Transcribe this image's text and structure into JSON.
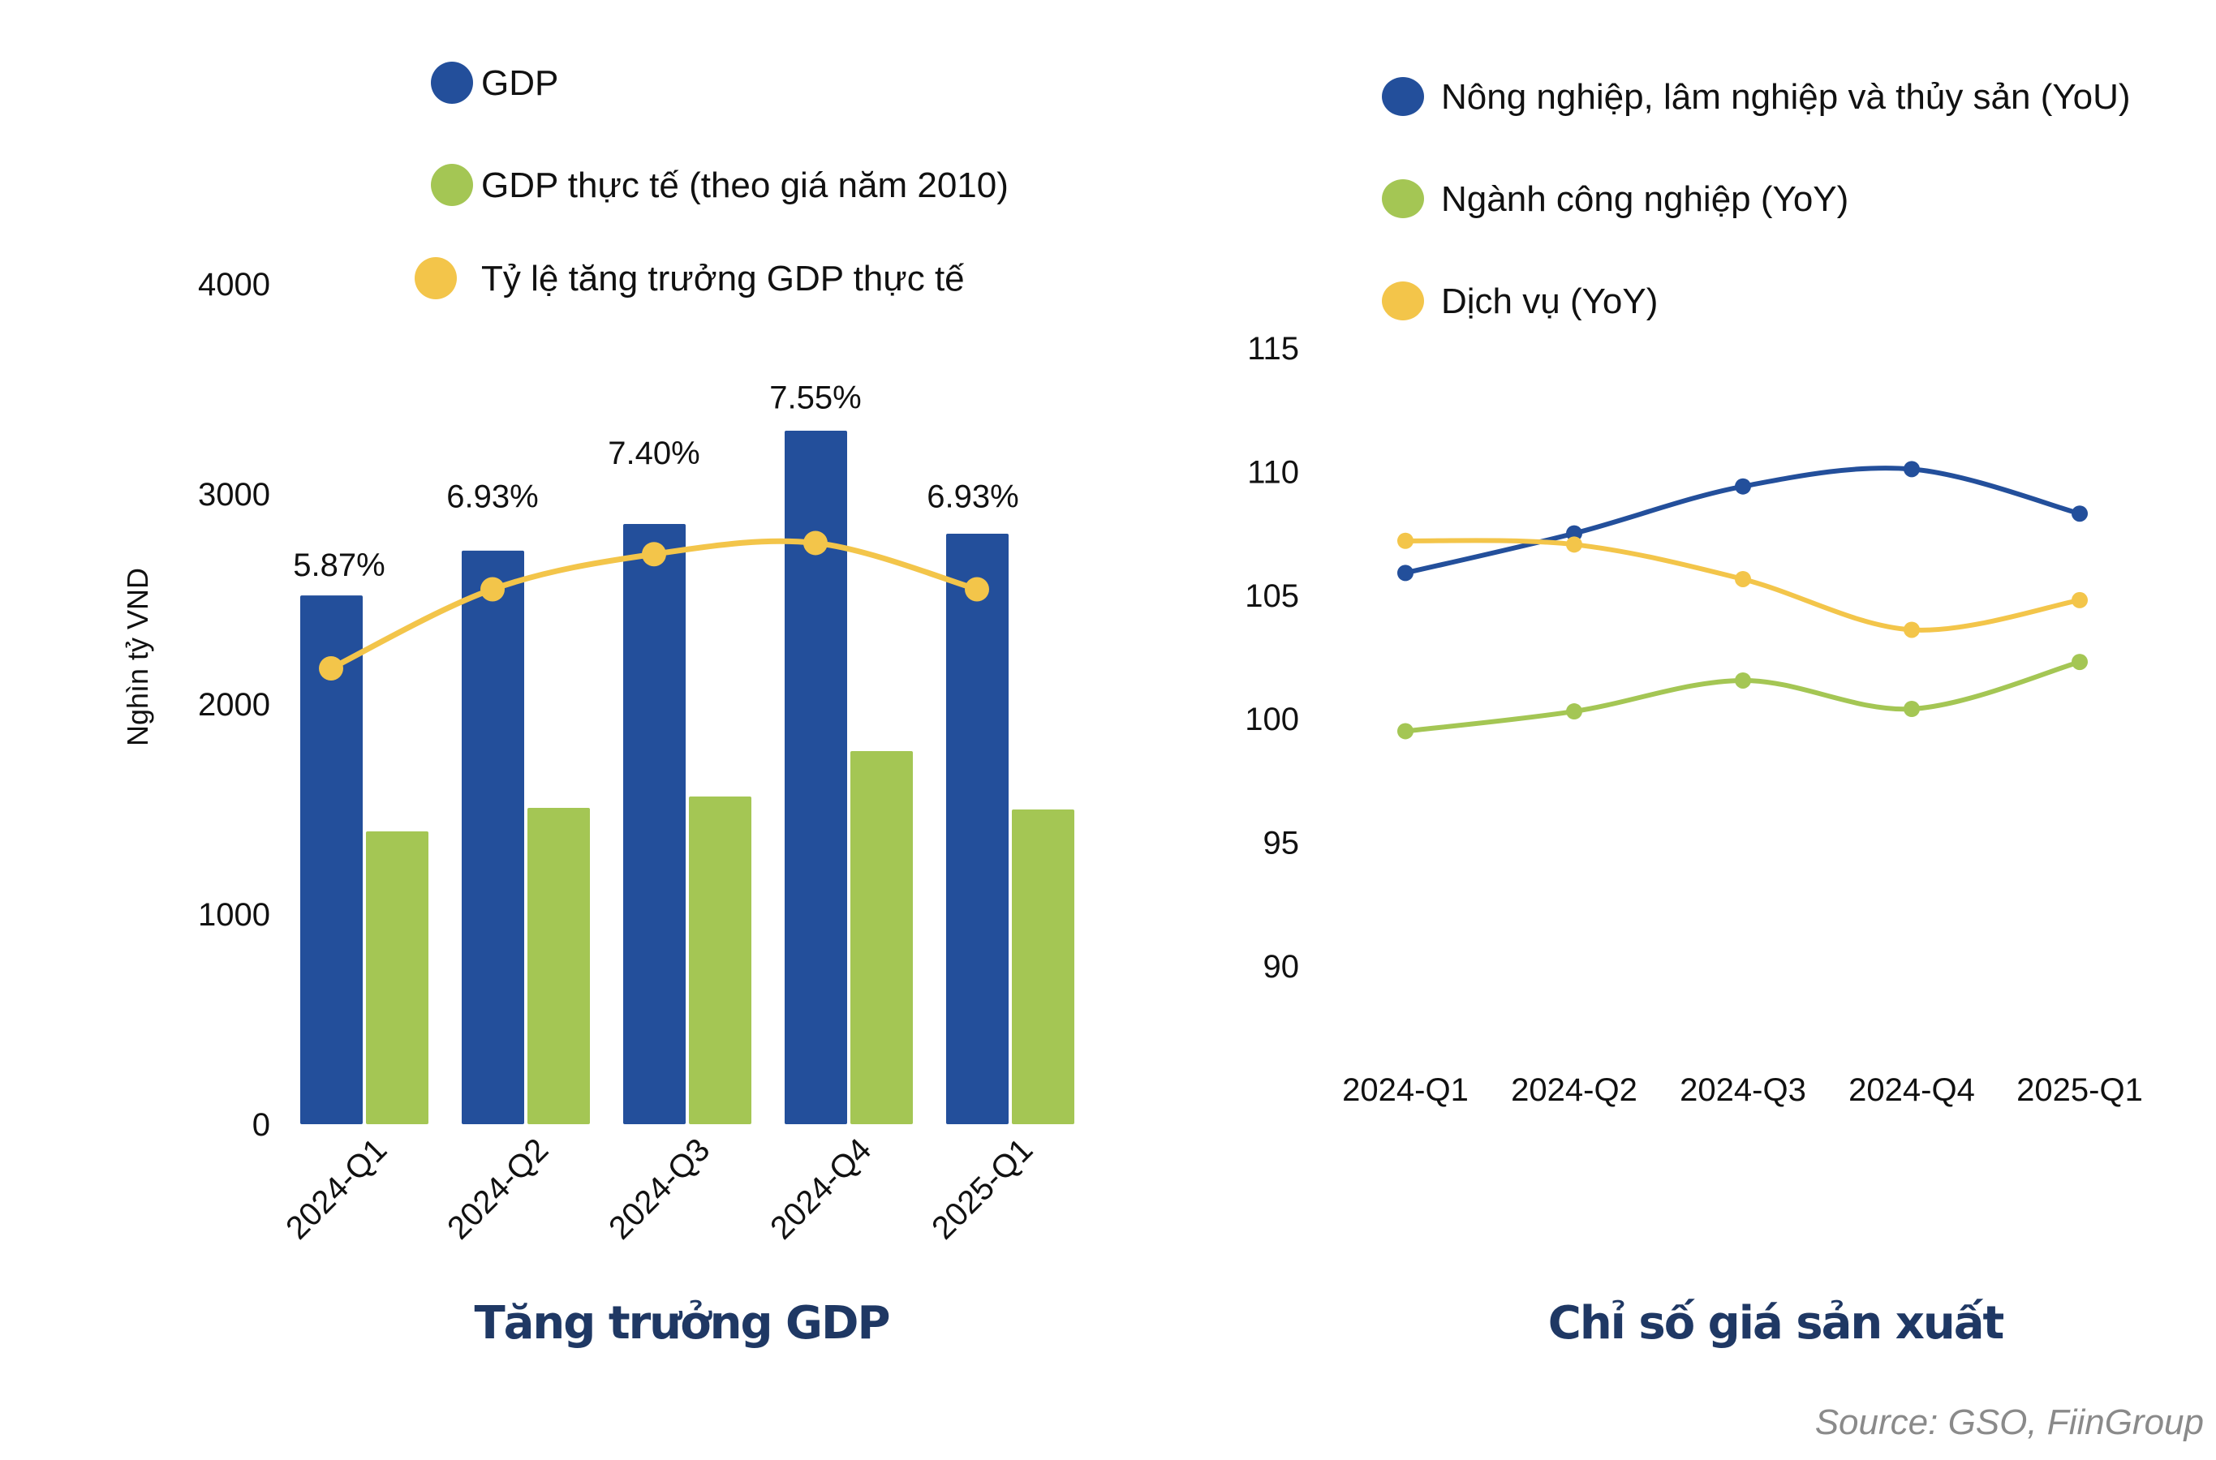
{
  "colors": {
    "blue": "#234f9b",
    "green": "#a4c654",
    "yellow": "#f3c54a",
    "title": "#1f3864",
    "source": "#8a8a8a"
  },
  "source": "Source: GSO, FiinGroup",
  "chart_data": [
    {
      "type": "bar",
      "title": "Tăng trưởng GDP",
      "ylabel": "Nghìn tỷ VND",
      "ylim": [
        0,
        4000
      ],
      "yticks": [
        "0",
        "1000",
        "2000",
        "3000",
        "4000"
      ],
      "categories": [
        "2024-Q1",
        "2024-Q2",
        "2024-Q3",
        "2024-Q4",
        "2025-Q1"
      ],
      "legend_position": "top",
      "grid": false,
      "series": [
        {
          "name": "GDP",
          "type": "bar",
          "color": "#234f9b",
          "values": [
            2517,
            2730,
            2857,
            3301,
            2811
          ]
        },
        {
          "name": "GDP thực tế (theo giá năm 2010)",
          "type": "bar",
          "color": "#a4c654",
          "values": [
            1394,
            1506,
            1560,
            1776,
            1498
          ]
        },
        {
          "name": "Tỷ lệ tăng trưởng GDP thực tế",
          "type": "line",
          "color": "#f3c54a",
          "values": [
            5.87,
            6.93,
            7.4,
            7.55,
            6.93
          ],
          "labels": [
            "5.87%",
            "6.93%",
            "7.40%",
            "7.55%",
            "6.93%"
          ]
        }
      ]
    },
    {
      "type": "line",
      "title": "Chỉ số giá sản xuất",
      "ylim": [
        90,
        115
      ],
      "yticks": [
        "90",
        "95",
        "100",
        "105",
        "110",
        "115"
      ],
      "categories": [
        "2024-Q1",
        "2024-Q2",
        "2024-Q3",
        "2024-Q4",
        "2025-Q1"
      ],
      "legend_position": "top",
      "grid": false,
      "series": [
        {
          "name": "Nông nghiệp, lâm nghiệp và thủy sản (YoU)",
          "color": "#234f9b",
          "values": [
            105.9,
            107.5,
            109.4,
            110.1,
            108.3
          ]
        },
        {
          "name": "Ngành công nghiệp (YoY)",
          "color": "#a4c654",
          "values": [
            99.5,
            100.3,
            101.55,
            100.4,
            102.3
          ]
        },
        {
          "name": "Dịch vụ (YoY)",
          "color": "#f3c54a",
          "values": [
            107.2,
            107.05,
            105.65,
            103.6,
            104.8
          ]
        }
      ]
    }
  ]
}
